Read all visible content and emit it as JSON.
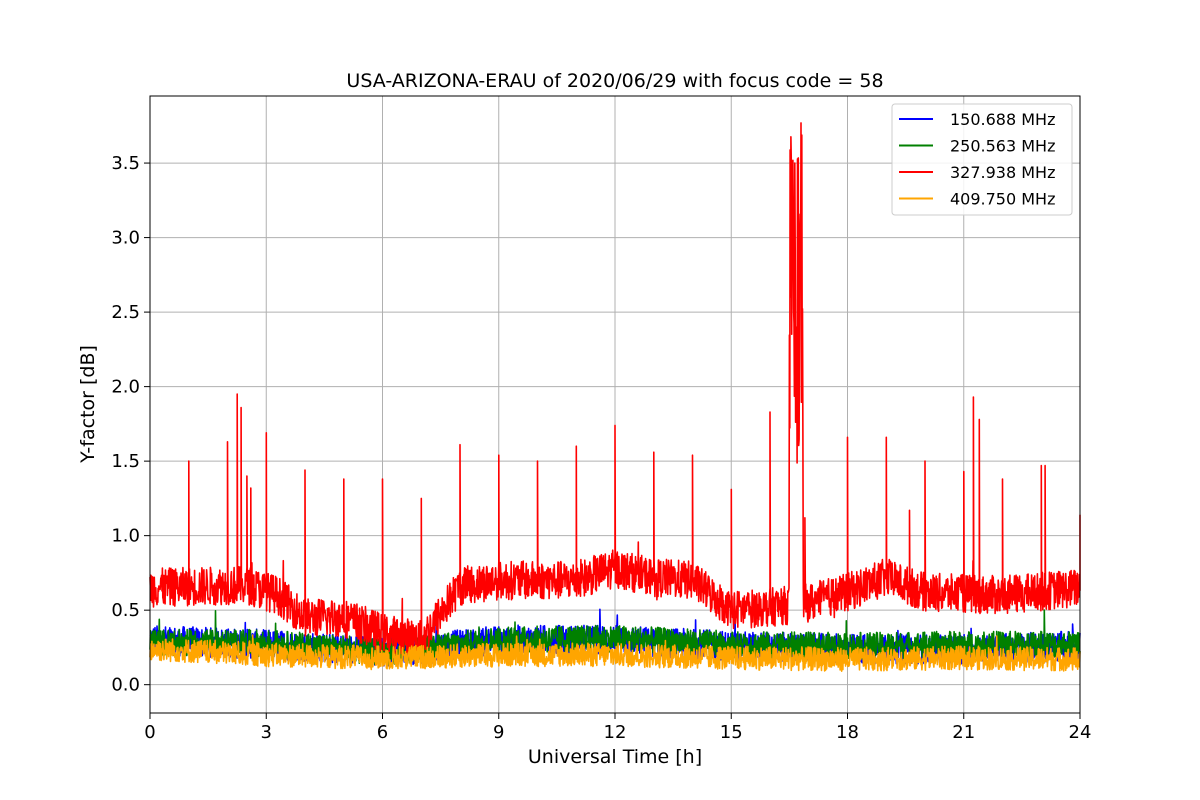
{
  "chart_data": {
    "type": "line",
    "title": "USA-ARIZONA-ERAU of 2020/06/29 with focus code = 58",
    "xlabel": "Universal Time [h]",
    "ylabel": "Y-factor [dB]",
    "xlim": [
      0,
      24
    ],
    "ylim": [
      -0.19,
      3.95
    ],
    "xticks": [
      "0",
      "3",
      "6",
      "9",
      "12",
      "15",
      "18",
      "21",
      "24"
    ],
    "yticks": [
      "0.0",
      "0.5",
      "1.0",
      "1.5",
      "2.0",
      "2.5",
      "3.0",
      "3.5"
    ],
    "grid": true,
    "legend_position": "top-right",
    "series": [
      {
        "name": "150.688 MHz",
        "color": "#0000ff",
        "baseline": [
          [
            0,
            0.3
          ],
          [
            3,
            0.27
          ],
          [
            6,
            0.22
          ],
          [
            7,
            0.24
          ],
          [
            9,
            0.3
          ],
          [
            12,
            0.3
          ],
          [
            15,
            0.26
          ],
          [
            18,
            0.24
          ],
          [
            21,
            0.24
          ],
          [
            24,
            0.26
          ]
        ],
        "noise": 0.1,
        "spikes": []
      },
      {
        "name": "250.563 MHz",
        "color": "#008000",
        "baseline": [
          [
            0,
            0.28
          ],
          [
            3,
            0.28
          ],
          [
            6,
            0.22
          ],
          [
            7,
            0.24
          ],
          [
            9,
            0.3
          ],
          [
            12,
            0.31
          ],
          [
            15,
            0.27
          ],
          [
            18,
            0.26
          ],
          [
            21,
            0.27
          ],
          [
            24,
            0.27
          ]
        ],
        "noise": 0.09,
        "spikes": []
      },
      {
        "name": "327.938 MHz",
        "color": "#ff0000",
        "baseline": [
          [
            0,
            0.65
          ],
          [
            2.5,
            0.67
          ],
          [
            3.3,
            0.6
          ],
          [
            4,
            0.45
          ],
          [
            5,
            0.45
          ],
          [
            6,
            0.35
          ],
          [
            7,
            0.3
          ],
          [
            8,
            0.66
          ],
          [
            9,
            0.7
          ],
          [
            11,
            0.7
          ],
          [
            12,
            0.78
          ],
          [
            13,
            0.72
          ],
          [
            14,
            0.7
          ],
          [
            15,
            0.5
          ],
          [
            16,
            0.52
          ],
          [
            17,
            0.55
          ],
          [
            18,
            0.62
          ],
          [
            19,
            0.72
          ],
          [
            20,
            0.62
          ],
          [
            22,
            0.6
          ],
          [
            24,
            0.65
          ]
        ],
        "noise": 0.13,
        "spikes": [
          [
            1.0,
            1.5
          ],
          [
            2.0,
            1.63
          ],
          [
            2.25,
            1.95
          ],
          [
            2.35,
            1.86
          ],
          [
            2.5,
            1.4
          ],
          [
            2.6,
            1.32
          ],
          [
            3.0,
            1.69
          ],
          [
            4.0,
            1.44
          ],
          [
            5.0,
            1.38
          ],
          [
            6.0,
            1.38
          ],
          [
            7.0,
            1.25
          ],
          [
            8.0,
            1.61
          ],
          [
            9.0,
            1.54
          ],
          [
            10.0,
            1.5
          ],
          [
            11.0,
            1.6
          ],
          [
            12.0,
            1.74
          ],
          [
            13.0,
            1.56
          ],
          [
            14.0,
            1.54
          ],
          [
            15.0,
            1.31
          ],
          [
            16.0,
            1.83
          ],
          [
            16.9,
            1.12
          ],
          [
            18.0,
            1.66
          ],
          [
            19.0,
            1.66
          ],
          [
            19.6,
            1.17
          ],
          [
            20.0,
            1.5
          ],
          [
            21.0,
            1.43
          ],
          [
            21.25,
            1.93
          ],
          [
            21.4,
            1.78
          ],
          [
            22.0,
            1.38
          ],
          [
            23.0,
            1.47
          ],
          [
            23.1,
            1.47
          ],
          [
            24.0,
            1.14
          ]
        ],
        "burst": {
          "start": 16.5,
          "end": 16.85,
          "min": 1.42,
          "max": 3.77
        }
      },
      {
        "name": "409.750 MHz",
        "color": "#ffa500",
        "baseline": [
          [
            0,
            0.24
          ],
          [
            3,
            0.2
          ],
          [
            6,
            0.18
          ],
          [
            9,
            0.2
          ],
          [
            12,
            0.2
          ],
          [
            15,
            0.18
          ],
          [
            18,
            0.17
          ],
          [
            21,
            0.18
          ],
          [
            24,
            0.17
          ]
        ],
        "noise": 0.08,
        "spikes": []
      }
    ]
  }
}
